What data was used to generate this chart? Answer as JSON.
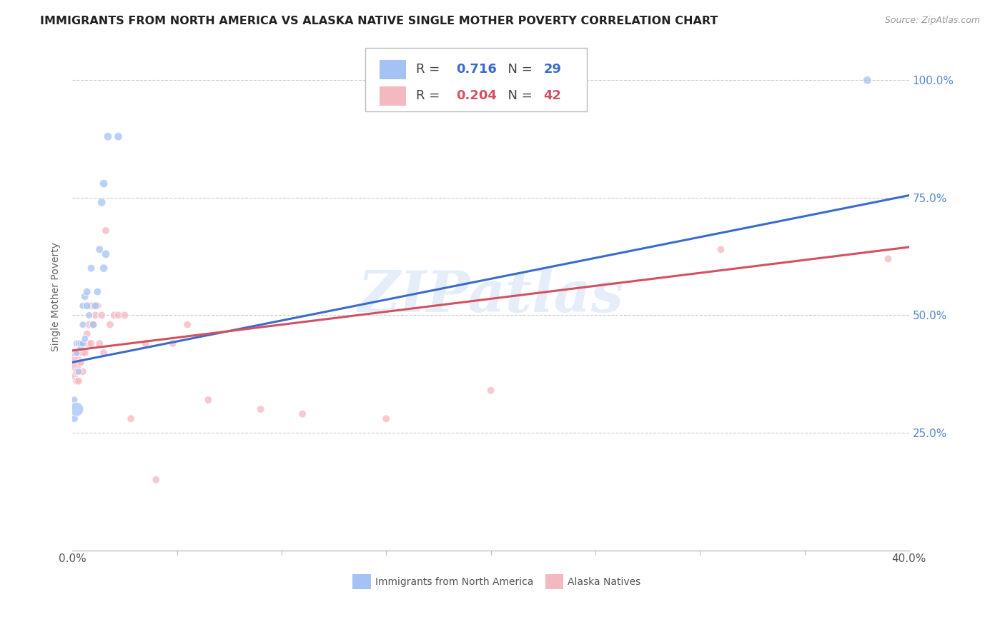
{
  "title": "IMMIGRANTS FROM NORTH AMERICA VS ALASKA NATIVE SINGLE MOTHER POVERTY CORRELATION CHART",
  "source": "Source: ZipAtlas.com",
  "ylabel": "Single Mother Poverty",
  "blue_R": "0.716",
  "blue_N": "29",
  "pink_R": "0.204",
  "pink_N": "42",
  "blue_label": "Immigrants from North America",
  "pink_label": "Alaska Natives",
  "blue_color": "#a4c2f4",
  "pink_color": "#f4b8c1",
  "blue_line_color": "#3a6bcc",
  "pink_line_color": "#d45060",
  "watermark": "ZIPatlas",
  "blue_points_x": [
    0.001,
    0.001,
    0.002,
    0.002,
    0.002,
    0.003,
    0.003,
    0.004,
    0.004,
    0.005,
    0.005,
    0.005,
    0.006,
    0.006,
    0.007,
    0.007,
    0.008,
    0.009,
    0.01,
    0.011,
    0.012,
    0.013,
    0.014,
    0.015,
    0.015,
    0.016,
    0.017,
    0.022,
    0.38
  ],
  "blue_points_y": [
    0.28,
    0.32,
    0.42,
    0.44,
    0.3,
    0.38,
    0.44,
    0.43,
    0.44,
    0.48,
    0.44,
    0.52,
    0.45,
    0.54,
    0.55,
    0.52,
    0.5,
    0.6,
    0.48,
    0.52,
    0.55,
    0.64,
    0.74,
    0.6,
    0.78,
    0.63,
    0.88,
    0.88,
    1.0
  ],
  "blue_sizes": [
    60,
    50,
    50,
    50,
    200,
    50,
    50,
    50,
    50,
    50,
    50,
    50,
    50,
    60,
    60,
    60,
    50,
    60,
    60,
    60,
    60,
    60,
    70,
    70,
    70,
    70,
    70,
    70,
    70
  ],
  "pink_points_x": [
    0.001,
    0.001,
    0.001,
    0.002,
    0.002,
    0.003,
    0.003,
    0.004,
    0.004,
    0.005,
    0.005,
    0.006,
    0.006,
    0.007,
    0.007,
    0.008,
    0.008,
    0.009,
    0.009,
    0.01,
    0.011,
    0.012,
    0.013,
    0.014,
    0.015,
    0.016,
    0.018,
    0.02,
    0.022,
    0.025,
    0.028,
    0.035,
    0.04,
    0.048,
    0.055,
    0.065,
    0.09,
    0.11,
    0.15,
    0.2,
    0.31,
    0.39
  ],
  "pink_points_y": [
    0.4,
    0.42,
    0.37,
    0.38,
    0.36,
    0.42,
    0.36,
    0.4,
    0.44,
    0.42,
    0.38,
    0.42,
    0.44,
    0.46,
    0.44,
    0.48,
    0.44,
    0.44,
    0.52,
    0.48,
    0.5,
    0.52,
    0.44,
    0.5,
    0.42,
    0.68,
    0.48,
    0.5,
    0.5,
    0.5,
    0.28,
    0.44,
    0.15,
    0.44,
    0.48,
    0.32,
    0.3,
    0.29,
    0.28,
    0.34,
    0.64,
    0.62
  ],
  "pink_sizes": [
    300,
    60,
    60,
    60,
    60,
    60,
    60,
    60,
    60,
    60,
    60,
    60,
    60,
    60,
    60,
    60,
    60,
    60,
    60,
    60,
    60,
    60,
    60,
    60,
    60,
    60,
    60,
    60,
    60,
    60,
    60,
    60,
    60,
    60,
    60,
    60,
    60,
    60,
    60,
    60,
    60,
    60
  ],
  "xlim": [
    0.0,
    0.4
  ],
  "ylim": [
    0.0,
    1.08
  ],
  "y_tick_vals": [
    0.25,
    0.5,
    0.75,
    1.0
  ],
  "y_tick_labels": [
    "25.0%",
    "50.0%",
    "75.0%",
    "100.0%"
  ],
  "x_tick_vals": [
    0.0,
    0.4
  ],
  "x_tick_labels": [
    "0.0%",
    "40.0%"
  ]
}
